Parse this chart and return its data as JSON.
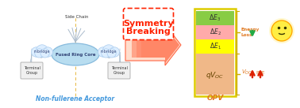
{
  "bg_color": "#ffffff",
  "title": "Non-fullerene Acceptor",
  "title_color": "#4499dd",
  "opv_label": "OPV",
  "opv_label_color": "#e07820",
  "symmetry_text_1": "Symmetry",
  "symmetry_text_2": "Breaking",
  "symmetry_color": "#ff2200",
  "energy_bar_colors": [
    "#ffff00",
    "#ffaaaa",
    "#88cc44"
  ],
  "qvoc_color": "#f0b888",
  "bar_border_color": "#cccc00",
  "energy_loss_color": "#e07820",
  "cloud_color": "#ddeeff",
  "cloud_border": "#aaccee",
  "core_color": "#b8ddf0",
  "core_border": "#88bbdd",
  "terminal_color": "#f0f0f0",
  "terminal_border": "#aaaaaa",
  "dashed_line_color": "#e8b840",
  "line_color": "#aabbcc",
  "green_arrow": "#22aa44",
  "red_arrow": "#dd2200",
  "brace_color": "#ccaa00",
  "smile_face_color": "#ffee44",
  "smile_border_color": "#ffaa00"
}
